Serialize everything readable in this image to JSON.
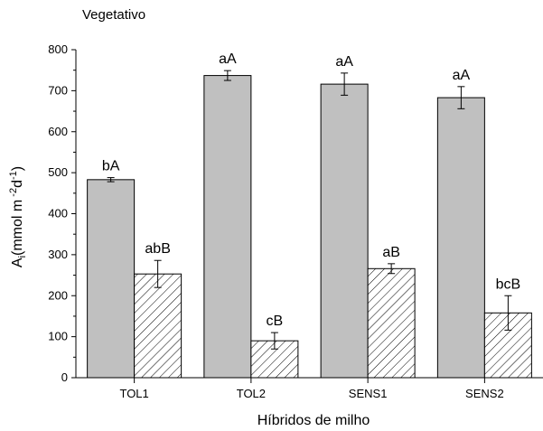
{
  "chart_data": {
    "type": "bar",
    "title": "Vegetativo",
    "xlabel": "Híbridos de milho",
    "ylabel": {
      "main": "A",
      "main_sub": "i",
      "pre": "(mmol m",
      "sup1": " -2",
      "mid": "d",
      "sup2": "-1",
      "post": ")"
    },
    "ylim": [
      0,
      800
    ],
    "yticks": [
      0,
      100,
      200,
      300,
      400,
      500,
      600,
      700,
      800
    ],
    "categories": [
      "TOL1",
      "TOL2",
      "SENS1",
      "SENS2"
    ],
    "series": [
      {
        "fill": "solid",
        "color": "#c0c0c0",
        "values": [
          483,
          737,
          716,
          683
        ],
        "errors": [
          5,
          12,
          27,
          27
        ],
        "labels": [
          "bA",
          "aA",
          "aA",
          "aA"
        ]
      },
      {
        "fill": "hatch",
        "color": "#ffffff",
        "values": [
          253,
          90,
          266,
          158
        ],
        "errors": [
          33,
          20,
          12,
          42
        ],
        "labels": [
          "abB",
          "cB",
          "aB",
          "bcB"
        ]
      }
    ]
  }
}
